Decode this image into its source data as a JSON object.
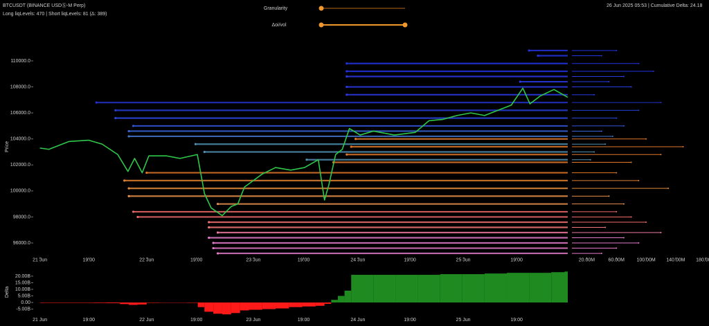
{
  "header": {
    "symbol": "BTCUSDT (BINANCE USDⓈ-M Perp)",
    "liq_summary": "Long liqLevels: 470 | Short liqLevels: 81 (Δ: 389)",
    "right_info": "26 Jun 2025 05:53 | Cumulative Delta: 24.18"
  },
  "controls": {
    "granularity_label": "Granularity",
    "oivol_label": "Δoi/vol"
  },
  "chart_data": [
    {
      "type": "line",
      "y_label": "Price",
      "color": "#2fc84a",
      "x": [
        0,
        2,
        6.5,
        11,
        14,
        17.5,
        19.8,
        21.3,
        23,
        24.5,
        28.4,
        31.5,
        35.4,
        37,
        38.5,
        41,
        43,
        44.5,
        46,
        50,
        53,
        56.4,
        59.5,
        62.6,
        64,
        65,
        66.5,
        68,
        69.6,
        72,
        75,
        79.7,
        84.4,
        87.5,
        90.6,
        93.8,
        96.9,
        100,
        103,
        106,
        108.6,
        110.2,
        112.5,
        115.6,
        118.7
      ],
      "values": [
        103300,
        103200,
        103800,
        103900,
        103600,
        102800,
        101500,
        102500,
        101400,
        102700,
        102700,
        102500,
        102800,
        99800,
        98700,
        98100,
        98800,
        99000,
        100300,
        101300,
        101800,
        101600,
        101800,
        102400,
        99300,
        100500,
        102800,
        103200,
        104800,
        104300,
        104600,
        104300,
        104500,
        105400,
        105500,
        105800,
        106000,
        105800,
        106200,
        106600,
        107900,
        106700,
        107300,
        107800,
        107200
      ],
      "xlim": [
        -1.5,
        118.7
      ],
      "ylim": [
        94900,
        112000
      ],
      "yticks": [
        {
          "value": 96000,
          "label": "96000.0"
        },
        {
          "value": 98000,
          "label": "98000.0"
        },
        {
          "value": 100000,
          "label": "100000.0"
        },
        {
          "value": 102000,
          "label": "102000.0"
        },
        {
          "value": 104000,
          "label": "104000.0"
        },
        {
          "value": 106000,
          "label": "106000.0"
        },
        {
          "value": 108000,
          "label": "108000.0"
        },
        {
          "value": 110000,
          "label": "110000.0"
        }
      ],
      "xticks": [
        {
          "value": 0,
          "label": "21 Jun"
        },
        {
          "value": 11,
          "label": "19:00"
        },
        {
          "value": 24,
          "label": "22 Jun"
        },
        {
          "value": 35.2,
          "label": "19:00"
        },
        {
          "value": 48,
          "label": "23 Jun"
        },
        {
          "value": 59.3,
          "label": "19:00"
        },
        {
          "value": 71.5,
          "label": "24 Jun"
        },
        {
          "value": 83.2,
          "label": "19:00"
        },
        {
          "value": 95.2,
          "label": "25 Jun"
        },
        {
          "value": 107.2,
          "label": "19:00"
        }
      ],
      "x2lim": [
        0,
        184
      ],
      "x2ticks": [
        {
          "value": 20,
          "label": "20.00M"
        },
        {
          "value": 60,
          "label": "60.00M"
        },
        {
          "value": 100,
          "label": "100.00M"
        },
        {
          "value": 140,
          "label": "140.00M"
        },
        {
          "value": 180,
          "label": "180.00M"
        }
      ],
      "levels": [
        {
          "price": 110800,
          "start": 110,
          "volume": 60,
          "color": "#2233e0"
        },
        {
          "price": 110400,
          "start": 112,
          "volume": 40,
          "color": "#2233e0"
        },
        {
          "price": 109800,
          "start": 69,
          "volume": 90,
          "color": "#2233e0"
        },
        {
          "price": 109200,
          "start": 69,
          "volume": 110,
          "color": "#2233e0"
        },
        {
          "price": 108800,
          "start": 69,
          "volume": 70,
          "color": "#2a3ae6"
        },
        {
          "price": 108400,
          "start": 108,
          "volume": 50,
          "color": "#2a3ae6"
        },
        {
          "price": 108000,
          "start": 69,
          "volume": 80,
          "color": "#2a3ae6"
        },
        {
          "price": 107400,
          "start": 69,
          "volume": 30,
          "color": "#2a3ae6"
        },
        {
          "price": 106800,
          "start": 12.7,
          "volume": 120,
          "color": "#2233c8"
        },
        {
          "price": 106200,
          "start": 17,
          "volume": 90,
          "color": "#2540d8"
        },
        {
          "price": 105600,
          "start": 17,
          "volume": 60,
          "color": "#2a48e0"
        },
        {
          "price": 105000,
          "start": 21,
          "volume": 70,
          "color": "#3355dd"
        },
        {
          "price": 104600,
          "start": 20,
          "volume": 40,
          "color": "#3a66d8"
        },
        {
          "price": 104200,
          "start": 20,
          "volume": 55,
          "color": "#4277cc"
        },
        {
          "price": 103600,
          "start": 35,
          "volume": 45,
          "color": "#4f8fb0"
        },
        {
          "price": 103000,
          "start": 37,
          "volume": 30,
          "color": "#4f8fb0"
        },
        {
          "price": 102400,
          "start": 60,
          "volume": 25,
          "color": "#4f8fb0"
        },
        {
          "price": 104000,
          "start": 71,
          "volume": 100,
          "color": "#e0782a"
        },
        {
          "price": 103400,
          "start": 70,
          "volume": 150,
          "color": "#e0782a"
        },
        {
          "price": 102800,
          "start": 69,
          "volume": 120,
          "color": "#e0782a"
        },
        {
          "price": 102200,
          "start": 66,
          "volume": 80,
          "color": "#e0782a"
        },
        {
          "price": 101400,
          "start": 24,
          "volume": 60,
          "color": "#e0782a"
        },
        {
          "price": 100800,
          "start": 19,
          "volume": 90,
          "color": "#e08030"
        },
        {
          "price": 100200,
          "start": 20,
          "volume": 130,
          "color": "#e08a3a"
        },
        {
          "price": 99600,
          "start": 20,
          "volume": 50,
          "color": "#e8904a"
        },
        {
          "price": 99000,
          "start": 40,
          "volume": 70,
          "color": "#e89050"
        },
        {
          "price": 98400,
          "start": 21,
          "volume": 60,
          "color": "#f06a6a"
        },
        {
          "price": 98000,
          "start": 22,
          "volume": 80,
          "color": "#f06a6a"
        },
        {
          "price": 97600,
          "start": 38,
          "volume": 100,
          "color": "#f07070"
        },
        {
          "price": 97200,
          "start": 38,
          "volume": 45,
          "color": "#f07878"
        },
        {
          "price": 96800,
          "start": 40,
          "volume": 120,
          "color": "#ee7aa0"
        },
        {
          "price": 96400,
          "start": 38,
          "volume": 70,
          "color": "#e27ac8"
        },
        {
          "price": 96000,
          "start": 39,
          "volume": 90,
          "color": "#e27ac8"
        },
        {
          "price": 95600,
          "start": 39,
          "volume": 60,
          "color": "#e27ac8"
        },
        {
          "price": 95200,
          "start": 40,
          "volume": 40,
          "color": "#e27ac8"
        }
      ]
    },
    {
      "type": "bar",
      "y_label": "Delta",
      "colors": {
        "positive": "#1f8a1f",
        "negative": "#ff1a1a"
      },
      "x": [
        0,
        3,
        6,
        9,
        12,
        15,
        18,
        20,
        22,
        24,
        27,
        30,
        33,
        35.5,
        37,
        39,
        41,
        43,
        45,
        47,
        50,
        53,
        56,
        59,
        62,
        64,
        65.5,
        67,
        68.5,
        70,
        75,
        80,
        85,
        90,
        95,
        100,
        105,
        110,
        115,
        118
      ],
      "values": [
        -0.3,
        -0.3,
        -0.3,
        -0.3,
        -0.4,
        -0.5,
        -1.2,
        -1.8,
        -1.5,
        -0.3,
        -0.2,
        -0.2,
        -0.3,
        -3.5,
        -7,
        -8.5,
        -9,
        -8,
        -6,
        -5.5,
        -5,
        -4.5,
        -3.5,
        -3,
        -2.5,
        -1,
        2,
        5,
        9,
        21,
        21,
        21,
        21,
        21.5,
        21.5,
        22,
        22.5,
        22.5,
        23,
        23.5
      ],
      "xlim": [
        -1.5,
        118.7
      ],
      "ylim": [
        -11,
        24.7
      ],
      "yticks": [
        {
          "value": -5,
          "label": "-5.00B"
        },
        {
          "value": 0,
          "label": "0.00"
        },
        {
          "value": 5,
          "label": "5.00B"
        },
        {
          "value": 10,
          "label": "10.00B"
        },
        {
          "value": 15,
          "label": "15.00B"
        },
        {
          "value": 20,
          "label": "20.00B"
        }
      ]
    }
  ]
}
